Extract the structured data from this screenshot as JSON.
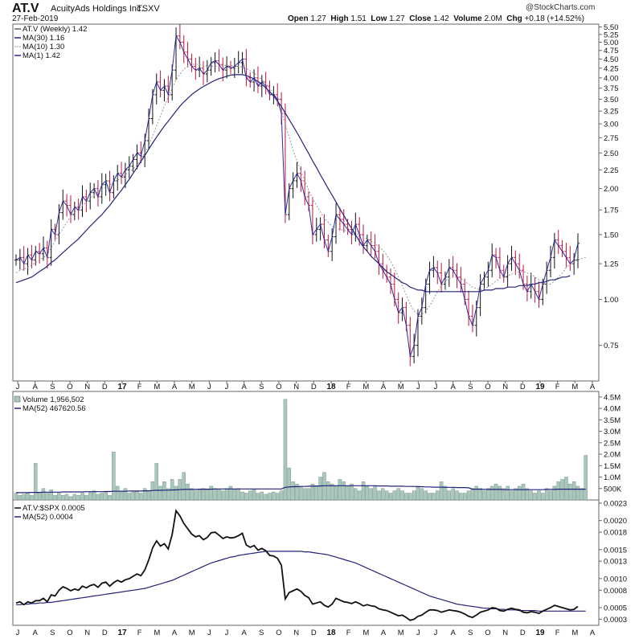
{
  "header": {
    "symbol": "AT.V",
    "company": "AcuityAds Holdings Inc.",
    "exchange": "TSXV",
    "date": "27-Feb-2019",
    "open_label": "Open",
    "open": "1.27",
    "high_label": "High",
    "high": "1.51",
    "low_label": "Low",
    "low": "1.27",
    "close_label": "Close",
    "close": "1.42",
    "volume_label": "Volume",
    "volume": "2.0M",
    "chg_label": "Chg",
    "chg": "+0.18 (+14.52%)",
    "watermark": "@StockCharts.com"
  },
  "legend": {
    "price": "AT.V (Weekly) 1.42",
    "ma30": "MA(30) 1.16",
    "ma10": "MA(10) 1.30",
    "ma1": "MA(1) 1.42",
    "volume": "Volume 1,956,502",
    "vol_ma": "MA(52) 467620.56",
    "ratio": "AT.V:$SPX 0.0005",
    "ratio_ma": "MA(52) 0.0004"
  },
  "chart_data": [
    {
      "type": "ohlc",
      "scale": "log",
      "ylim": [
        0.6,
        5.6
      ],
      "yticks": [
        "0.75",
        "1.00",
        "1.25",
        "1.50",
        "1.75",
        "2.00",
        "2.25",
        "2.50",
        "2.75",
        "3.00",
        "3.25",
        "3.50",
        "3.75",
        "4.00",
        "4.25",
        "4.50",
        "4.75",
        "5.00",
        "5.25",
        "5.50"
      ],
      "xticks": [
        "J",
        "A",
        "S",
        "O",
        "N",
        "D",
        "17",
        "F",
        "M",
        "A",
        "M",
        "J",
        "J",
        "A",
        "S",
        "O",
        "N",
        "D",
        "18",
        "F",
        "M",
        "A",
        "M",
        "J",
        "J",
        "A",
        "S",
        "O",
        "N",
        "D",
        "19",
        "F",
        "M",
        "A"
      ],
      "close": [
        1.28,
        1.3,
        1.25,
        1.32,
        1.28,
        1.35,
        1.33,
        1.38,
        1.3,
        1.55,
        1.5,
        1.72,
        1.85,
        1.8,
        1.7,
        1.78,
        1.75,
        1.9,
        1.85,
        1.95,
        2.0,
        1.9,
        2.05,
        2.1,
        1.95,
        2.1,
        2.2,
        2.15,
        2.25,
        2.3,
        2.4,
        2.5,
        2.45,
        2.7,
        3.1,
        3.6,
        3.9,
        3.7,
        3.8,
        3.6,
        4.2,
        5.2,
        5.0,
        4.7,
        4.5,
        4.3,
        4.2,
        4.25,
        4.1,
        4.2,
        4.4,
        4.45,
        4.35,
        4.2,
        4.3,
        4.25,
        4.3,
        4.4,
        4.5,
        4.0,
        3.9,
        4.0,
        3.8,
        3.9,
        3.8,
        3.6,
        3.6,
        3.5,
        3.2,
        1.7,
        2.0,
        2.1,
        2.2,
        2.1,
        1.9,
        1.8,
        1.5,
        1.55,
        1.6,
        1.45,
        1.35,
        1.48,
        1.7,
        1.65,
        1.6,
        1.55,
        1.5,
        1.6,
        1.5,
        1.4,
        1.45,
        1.4,
        1.35,
        1.25,
        1.2,
        1.15,
        1.1,
        1.0,
        0.92,
        0.95,
        0.85,
        0.7,
        0.75,
        0.9,
        0.95,
        1.1,
        1.2,
        1.22,
        1.18,
        1.1,
        1.15,
        1.22,
        1.2,
        1.15,
        1.1,
        1.0,
        0.9,
        0.85,
        0.95,
        1.1,
        1.15,
        1.2,
        1.32,
        1.3,
        1.2,
        1.15,
        1.25,
        1.3,
        1.25,
        1.2,
        1.1,
        1.05,
        1.1,
        1.05,
        1.0,
        1.1,
        1.2,
        1.3,
        1.45,
        1.4,
        1.35,
        1.3,
        1.25,
        1.28,
        1.42
      ],
      "ma30": [
        1.11,
        1.12,
        1.13,
        1.14,
        1.15,
        1.17,
        1.19,
        1.21,
        1.23,
        1.26,
        1.28,
        1.31,
        1.34,
        1.37,
        1.4,
        1.43,
        1.46,
        1.5,
        1.54,
        1.58,
        1.62,
        1.66,
        1.7,
        1.75,
        1.8,
        1.86,
        1.92,
        1.98,
        2.05,
        2.12,
        2.2,
        2.28,
        2.37,
        2.46,
        2.56,
        2.66,
        2.76,
        2.86,
        2.96,
        3.05,
        3.15,
        3.25,
        3.35,
        3.44,
        3.52,
        3.6,
        3.67,
        3.73,
        3.79,
        3.84,
        3.89,
        3.94,
        3.98,
        4.01,
        4.04,
        4.07,
        4.08,
        4.08,
        4.08,
        4.06,
        4.02,
        3.97,
        3.91,
        3.84,
        3.76,
        3.67,
        3.57,
        3.46,
        3.34,
        3.21,
        3.08,
        2.96,
        2.84,
        2.72,
        2.6,
        2.49,
        2.38,
        2.28,
        2.18,
        2.09,
        2.0,
        1.92,
        1.84,
        1.76,
        1.69,
        1.62,
        1.56,
        1.5,
        1.44,
        1.39,
        1.35,
        1.31,
        1.28,
        1.25,
        1.22,
        1.19,
        1.17,
        1.15,
        1.13,
        1.11,
        1.1,
        1.08,
        1.07,
        1.06,
        1.06,
        1.05,
        1.05,
        1.05,
        1.05,
        1.05,
        1.05,
        1.05,
        1.05,
        1.05,
        1.05,
        1.05,
        1.05,
        1.05,
        1.05,
        1.05,
        1.06,
        1.06,
        1.06,
        1.07,
        1.07,
        1.07,
        1.08,
        1.08,
        1.08,
        1.09,
        1.09,
        1.09,
        1.1,
        1.1,
        1.11,
        1.11,
        1.12,
        1.13,
        1.13,
        1.14,
        1.15,
        1.15,
        1.16
      ],
      "ma10": [
        1.18,
        1.2,
        1.21,
        1.22,
        1.24,
        1.26,
        1.28,
        1.3,
        1.32,
        1.38,
        1.44,
        1.5,
        1.56,
        1.62,
        1.68,
        1.72,
        1.76,
        1.8,
        1.84,
        1.88,
        1.92,
        1.96,
        1.99,
        2.02,
        2.05,
        2.08,
        2.11,
        2.14,
        2.18,
        2.22,
        2.26,
        2.32,
        2.4,
        2.5,
        2.62,
        2.78,
        2.96,
        3.15,
        3.35,
        3.55,
        3.75,
        3.95,
        4.1,
        4.22,
        4.3,
        4.35,
        4.36,
        4.35,
        4.33,
        4.31,
        4.3,
        4.3,
        4.31,
        4.32,
        4.33,
        4.32,
        4.31,
        4.3,
        4.28,
        4.24,
        4.18,
        4.12,
        4.04,
        3.96,
        3.86,
        3.74,
        3.6,
        3.44,
        3.24,
        3.0,
        2.76,
        2.55,
        2.38,
        2.23,
        2.1,
        1.98,
        1.88,
        1.8,
        1.73,
        1.66,
        1.62,
        1.58,
        1.56,
        1.55,
        1.54,
        1.53,
        1.52,
        1.51,
        1.5,
        1.48,
        1.46,
        1.44,
        1.42,
        1.39,
        1.36,
        1.32,
        1.27,
        1.21,
        1.15,
        1.09,
        1.03,
        0.97,
        0.93,
        0.91,
        0.91,
        0.93,
        0.96,
        1.0,
        1.05,
        1.09,
        1.12,
        1.14,
        1.15,
        1.15,
        1.14,
        1.12,
        1.1,
        1.08,
        1.07,
        1.06,
        1.07,
        1.08,
        1.1,
        1.12,
        1.14,
        1.15,
        1.16,
        1.17,
        1.18,
        1.19,
        1.19,
        1.18,
        1.17,
        1.15,
        1.13,
        1.11,
        1.1,
        1.1,
        1.12,
        1.15,
        1.18,
        1.22,
        1.25,
        1.27,
        1.28,
        1.29,
        1.3
      ]
    },
    {
      "type": "bar",
      "ylim": [
        0,
        4.6
      ],
      "yticks": [
        "500K",
        "1.0M",
        "1.5M",
        "2.0M",
        "2.5M",
        "3.0M",
        "3.5M",
        "4.0M",
        "4.5M"
      ],
      "values": [
        0.3,
        0.2,
        0.25,
        0.3,
        0.2,
        1.6,
        0.3,
        0.5,
        0.3,
        0.45,
        0.2,
        0.3,
        0.2,
        0.25,
        0.15,
        0.25,
        0.2,
        0.3,
        0.2,
        0.35,
        0.4,
        0.25,
        0.3,
        0.35,
        0.2,
        2.1,
        0.6,
        0.4,
        0.5,
        0.3,
        0.35,
        0.4,
        0.3,
        0.5,
        0.4,
        0.8,
        1.6,
        0.6,
        0.8,
        0.5,
        0.9,
        0.6,
        0.9,
        1.2,
        0.7,
        0.5,
        0.4,
        0.45,
        0.5,
        0.45,
        0.6,
        0.5,
        0.45,
        0.4,
        0.5,
        0.6,
        0.45,
        0.5,
        0.35,
        0.3,
        0.4,
        0.45,
        0.3,
        0.35,
        0.25,
        0.3,
        0.35,
        0.3,
        0.4,
        4.4,
        1.4,
        0.8,
        0.7,
        0.6,
        0.5,
        0.5,
        0.7,
        0.6,
        1.0,
        1.2,
        0.8,
        0.7,
        0.6,
        0.9,
        0.8,
        0.6,
        0.7,
        0.5,
        0.4,
        0.8,
        0.6,
        0.5,
        0.6,
        0.4,
        0.5,
        0.4,
        0.3,
        0.4,
        0.5,
        0.4,
        0.3,
        0.3,
        0.4,
        0.6,
        0.5,
        0.4,
        0.3,
        0.3,
        0.4,
        0.8,
        0.6,
        0.4,
        0.5,
        0.4,
        0.3,
        0.3,
        0.4,
        0.5,
        0.6,
        0.5,
        0.4,
        0.5,
        0.6,
        0.7,
        0.6,
        0.5,
        0.6,
        0.4,
        0.5,
        0.6,
        0.7,
        0.5,
        0.4,
        0.3,
        0.4,
        0.3,
        0.5,
        0.4,
        0.6,
        0.8,
        0.9,
        1.0,
        0.7,
        0.8,
        0.6,
        0.5,
        1.95
      ],
      "ma": [
        0.32,
        0.32,
        0.32,
        0.32,
        0.33,
        0.33,
        0.33,
        0.34,
        0.34,
        0.34,
        0.34,
        0.34,
        0.35,
        0.35,
        0.35,
        0.35,
        0.35,
        0.35,
        0.36,
        0.36,
        0.36,
        0.36,
        0.36,
        0.37,
        0.37,
        0.38,
        0.38,
        0.38,
        0.38,
        0.39,
        0.39,
        0.39,
        0.39,
        0.4,
        0.4,
        0.41,
        0.42,
        0.42,
        0.43,
        0.43,
        0.44,
        0.44,
        0.45,
        0.46,
        0.46,
        0.46,
        0.46,
        0.47,
        0.47,
        0.47,
        0.47,
        0.48,
        0.48,
        0.48,
        0.48,
        0.48,
        0.48,
        0.48,
        0.48,
        0.48,
        0.48,
        0.48,
        0.48,
        0.48,
        0.48,
        0.48,
        0.48,
        0.48,
        0.48,
        0.55,
        0.57,
        0.58,
        0.58,
        0.59,
        0.59,
        0.6,
        0.6,
        0.61,
        0.61,
        0.62,
        0.62,
        0.62,
        0.62,
        0.62,
        0.62,
        0.62,
        0.62,
        0.62,
        0.62,
        0.62,
        0.62,
        0.62,
        0.62,
        0.61,
        0.61,
        0.61,
        0.6,
        0.6,
        0.6,
        0.6,
        0.59,
        0.59,
        0.59,
        0.58,
        0.58,
        0.57,
        0.57,
        0.56,
        0.56,
        0.56,
        0.55,
        0.55,
        0.55,
        0.54,
        0.54,
        0.54,
        0.53,
        0.47,
        0.47,
        0.47,
        0.46,
        0.46,
        0.46,
        0.46,
        0.46,
        0.45,
        0.45,
        0.45,
        0.45,
        0.45,
        0.45,
        0.45,
        0.45,
        0.45,
        0.45,
        0.45,
        0.46,
        0.46,
        0.46,
        0.47,
        0.47,
        0.47,
        0.47,
        0.47,
        0.47,
        0.47,
        0.47
      ]
    },
    {
      "type": "line",
      "ylim": [
        0.00025,
        0.0023
      ],
      "yticks": [
        "0.0003",
        "0.0005",
        "0.0008",
        "0.0010",
        "0.0013",
        "0.0015",
        "0.0018",
        "0.0020",
        "0.0023"
      ],
      "series": [
        {
          "name": "AT.V:$SPX",
          "values": [
            0.00058,
            0.0006,
            0.00055,
            0.0006,
            0.00058,
            0.00062,
            0.00062,
            0.00066,
            0.0006,
            0.00072,
            0.0007,
            0.0008,
            0.00086,
            0.00083,
            0.00079,
            0.00082,
            0.0008,
            0.00087,
            0.00084,
            0.00088,
            0.0009,
            0.00085,
            0.00092,
            0.00094,
            0.00087,
            0.00093,
            0.00097,
            0.00094,
            0.00098,
            0.001,
            0.00104,
            0.00108,
            0.00105,
            0.00115,
            0.00132,
            0.00153,
            0.00165,
            0.00156,
            0.0016,
            0.00151,
            0.00176,
            0.00217,
            0.00208,
            0.00195,
            0.00186,
            0.00177,
            0.00172,
            0.00174,
            0.00167,
            0.00171,
            0.00179,
            0.0018,
            0.00175,
            0.00169,
            0.00172,
            0.0017,
            0.00171,
            0.00174,
            0.00178,
            0.00158,
            0.00154,
            0.00157,
            0.00149,
            0.00152,
            0.00148,
            0.0014,
            0.00139,
            0.00135,
            0.00123,
            0.00065,
            0.00076,
            0.00079,
            0.00082,
            0.00078,
            0.00071,
            0.00067,
            0.00056,
            0.00058,
            0.0006,
            0.00054,
            0.00051,
            0.00056,
            0.00066,
            0.00063,
            0.0006,
            0.00059,
            0.00057,
            0.0006,
            0.00057,
            0.00053,
            0.00055,
            0.00053,
            0.00052,
            0.00048,
            0.00046,
            0.00045,
            0.00042,
            0.00039,
            0.00036,
            0.00037,
            0.00033,
            0.00028,
            0.0003,
            0.00035,
            0.00037,
            0.00042,
            0.00046,
            0.00046,
            0.00045,
            0.00042,
            0.00044,
            0.00046,
            0.00045,
            0.00044,
            0.00042,
            0.00039,
            0.00035,
            0.00033,
            0.00037,
            0.00042,
            0.00044,
            0.00046,
            0.0005,
            0.00049,
            0.00045,
            0.00044,
            0.00047,
            0.00049,
            0.00047,
            0.00046,
            0.00042,
            0.00041,
            0.00043,
            0.00042,
            0.0004,
            0.00044,
            0.00047,
            0.0005,
            0.00054,
            0.00052,
            0.0005,
            0.00048,
            0.00046,
            0.00047,
            0.00052
          ]
        },
        {
          "name": "MA(52)",
          "values": [
            0.00055,
            0.00055,
            0.00056,
            0.00056,
            0.00057,
            0.00057,
            0.00058,
            0.00058,
            0.00059,
            0.00059,
            0.0006,
            0.00061,
            0.00062,
            0.00063,
            0.00064,
            0.00065,
            0.00066,
            0.00067,
            0.00068,
            0.00069,
            0.0007,
            0.00071,
            0.00072,
            0.00073,
            0.00074,
            0.00075,
            0.00076,
            0.00077,
            0.00078,
            0.00079,
            0.0008,
            0.00081,
            0.00082,
            0.00083,
            0.00085,
            0.00087,
            0.00089,
            0.00091,
            0.00093,
            0.00095,
            0.00097,
            0.001,
            0.00103,
            0.00106,
            0.00109,
            0.00112,
            0.00115,
            0.00118,
            0.00121,
            0.00124,
            0.00127,
            0.00129,
            0.00131,
            0.00133,
            0.00135,
            0.00137,
            0.00138,
            0.0014,
            0.00141,
            0.00142,
            0.00143,
            0.00144,
            0.00145,
            0.00146,
            0.00147,
            0.00147,
            0.00147,
            0.00147,
            0.00147,
            0.00147,
            0.00147,
            0.00147,
            0.00147,
            0.00147,
            0.00146,
            0.00146,
            0.00145,
            0.00144,
            0.00143,
            0.00142,
            0.00141,
            0.00139,
            0.00137,
            0.00135,
            0.00133,
            0.00131,
            0.00129,
            0.00127,
            0.00124,
            0.00121,
            0.00118,
            0.00115,
            0.00112,
            0.00109,
            0.00106,
            0.00103,
            0.001,
            0.00097,
            0.00094,
            0.00091,
            0.00088,
            0.00085,
            0.00082,
            0.00079,
            0.00076,
            0.00073,
            0.0007,
            0.00068,
            0.00066,
            0.00064,
            0.00062,
            0.0006,
            0.00058,
            0.00056,
            0.00055,
            0.00054,
            0.00053,
            0.00052,
            0.00051,
            0.0005,
            0.00049,
            0.00049,
            0.00048,
            0.00048,
            0.00047,
            0.00047,
            0.00046,
            0.00046,
            0.00046,
            0.00045,
            0.00045,
            0.00045,
            0.00045,
            0.00045,
            0.00044,
            0.00044,
            0.00044,
            0.00044,
            0.00044,
            0.00044,
            0.00044,
            0.00044,
            0.00044,
            0.00044,
            0.00044,
            0.00044,
            0.00044
          ]
        }
      ]
    }
  ]
}
